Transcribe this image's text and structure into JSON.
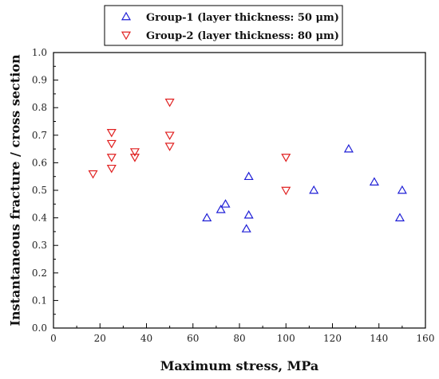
{
  "chart_data": {
    "type": "scatter",
    "xlabel": "Maximum stress, MPa",
    "ylabel": "Instantaneous fracture / cross section",
    "xlim": [
      0,
      160
    ],
    "ylim": [
      0.0,
      1.0
    ],
    "x_ticks": [
      "0",
      "20",
      "40",
      "60",
      "80",
      "100",
      "120",
      "140",
      "160"
    ],
    "y_ticks": [
      "0.0",
      "0.1",
      "0.2",
      "0.3",
      "0.4",
      "0.5",
      "0.6",
      "0.7",
      "0.8",
      "0.9",
      "1.0"
    ],
    "grid": false,
    "legend_position": "top-center",
    "series": [
      {
        "name": "Group-1 (layer thickness: 50 μm)",
        "marker": "triangle-up",
        "color": "#1f1fd6",
        "points": [
          {
            "x": 66,
            "y": 0.4
          },
          {
            "x": 72,
            "y": 0.43
          },
          {
            "x": 74,
            "y": 0.45
          },
          {
            "x": 83,
            "y": 0.36
          },
          {
            "x": 84,
            "y": 0.41
          },
          {
            "x": 84,
            "y": 0.55
          },
          {
            "x": 112,
            "y": 0.5
          },
          {
            "x": 127,
            "y": 0.65
          },
          {
            "x": 138,
            "y": 0.53
          },
          {
            "x": 149,
            "y": 0.4
          },
          {
            "x": 150,
            "y": 0.5
          }
        ]
      },
      {
        "name": "Group-2 (layer thickness: 80 μm)",
        "marker": "triangle-down",
        "color": "#e02020",
        "points": [
          {
            "x": 17,
            "y": 0.56
          },
          {
            "x": 25,
            "y": 0.58
          },
          {
            "x": 25,
            "y": 0.62
          },
          {
            "x": 25,
            "y": 0.67
          },
          {
            "x": 25,
            "y": 0.71
          },
          {
            "x": 35,
            "y": 0.62
          },
          {
            "x": 35,
            "y": 0.64
          },
          {
            "x": 50,
            "y": 0.66
          },
          {
            "x": 50,
            "y": 0.7
          },
          {
            "x": 50,
            "y": 0.82
          },
          {
            "x": 100,
            "y": 0.5
          },
          {
            "x": 100,
            "y": 0.62
          }
        ]
      }
    ]
  }
}
